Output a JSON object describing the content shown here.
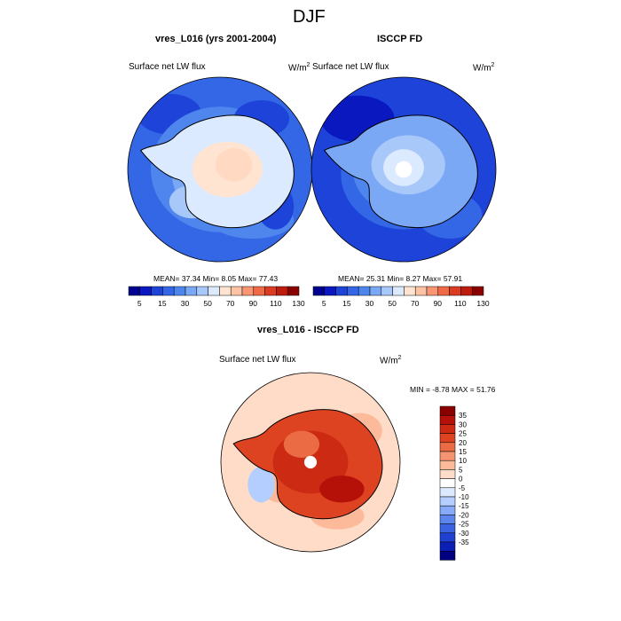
{
  "figure": {
    "title": "DJF"
  },
  "panels": [
    {
      "title": "vres_L016 (yrs 2001-2004)",
      "left_label": "Surface net LW flux",
      "unit": "W/m",
      "unit_sup": "2",
      "stats": "MEAN=  37.34  Min=   8.05  Max=  77.43"
    },
    {
      "title": "ISCCP FD",
      "left_label": "Surface net LW flux",
      "unit": "W/m",
      "unit_sup": "2",
      "stats": "MEAN=  25.31  Min=   8.27  Max=  57.91"
    },
    {
      "title": "vres_L016 - ISCCP FD",
      "left_label": "Surface net LW flux",
      "unit": "W/m",
      "unit_sup": "2",
      "stats": "MIN = -8.78 MAX =  51.76"
    }
  ],
  "colors": {
    "top_scale": [
      "#00008f",
      "#0a18bf",
      "#1d43d8",
      "#3367e6",
      "#4f86ee",
      "#7aa8f5",
      "#a9c8fa",
      "#dceaff",
      "#ffe4d2",
      "#ffc2a5",
      "#fb9674",
      "#f06a48",
      "#dd3c22",
      "#c01c0e",
      "#8a0000"
    ],
    "diff_scale": [
      "#8a0000",
      "#b61108",
      "#cc2a12",
      "#dd4321",
      "#ea6b44",
      "#f59470",
      "#fcba9b",
      "#ffdcc8",
      "#ffffff",
      "#dceaff",
      "#b3ceff",
      "#86aaf7",
      "#5c86ee",
      "#3a62e1",
      "#1f40d0",
      "#0b1fb7",
      "#000080"
    ]
  },
  "chart_data": [
    {
      "type": "heatmap",
      "title": "vres_L016 (yrs 2001-2004)",
      "subtitle": "Surface net LW flux",
      "unit": "W/m2",
      "projection": "south polar stereographic",
      "colorbar_ticks": [
        "5",
        "15",
        "30",
        "50",
        "70",
        "90",
        "110",
        "130"
      ],
      "stats": {
        "mean": 37.34,
        "min": 8.05,
        "max": 77.43
      }
    },
    {
      "type": "heatmap",
      "title": "ISCCP FD",
      "subtitle": "Surface net LW flux",
      "unit": "W/m2",
      "projection": "south polar stereographic",
      "colorbar_ticks": [
        "5",
        "15",
        "30",
        "50",
        "70",
        "90",
        "110",
        "130"
      ],
      "stats": {
        "mean": 25.31,
        "min": 8.27,
        "max": 57.91
      }
    },
    {
      "type": "heatmap",
      "title": "vres_L016 - ISCCP FD",
      "subtitle": "Surface net LW flux",
      "unit": "W/m2",
      "projection": "south polar stereographic",
      "colorbar_ticks": [
        "35",
        "30",
        "25",
        "20",
        "15",
        "10",
        "5",
        "0",
        "-5",
        "-10",
        "-15",
        "-20",
        "-25",
        "-30",
        "-35"
      ],
      "stats": {
        "min": -8.78,
        "max": 51.76
      }
    }
  ]
}
